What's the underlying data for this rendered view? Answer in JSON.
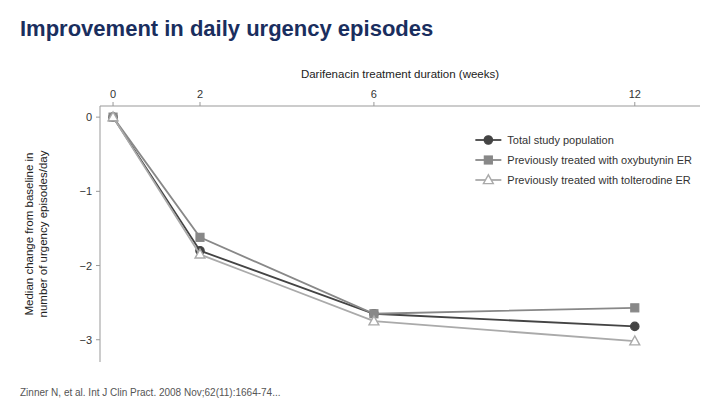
{
  "chart_data": {
    "type": "line",
    "title": "Improvement in daily urgency episodes",
    "citation": "Zinner N, et al. Int J Clin Pract. 2008 Nov;62(11):1664-74...",
    "x_label": "Darifenacin treatment duration (weeks)",
    "y_label": "Median change from baseline in\nnumber of urgency episodes/day",
    "x": [
      0,
      2,
      6,
      12
    ],
    "xlim": [
      -0.3,
      13.5
    ],
    "xticks": [
      0,
      2,
      6,
      12
    ],
    "ylim": [
      -3.3,
      0.15
    ],
    "yticks": [
      0,
      {
        "value": -1,
        "label": "−1"
      },
      {
        "value": -2,
        "label": "−2"
      },
      {
        "value": -3,
        "label": "−3"
      }
    ],
    "grid": false,
    "legend": "upper right",
    "series": [
      {
        "name": "Total study population",
        "color": "#444444",
        "marker": "circle",
        "line_style": "solid",
        "values": [
          0,
          -1.8,
          -2.65,
          -2.82
        ]
      },
      {
        "name": "Previously treated with oxybutynin ER",
        "color": "#888888",
        "marker": "square",
        "line_style": "solid",
        "values": [
          0,
          -1.62,
          -2.65,
          -2.57
        ]
      },
      {
        "name": "Previously treated with tolterodine ER",
        "color": "#aaaaaa",
        "marker": "triangle-open",
        "line_style": "solid",
        "values": [
          0,
          -1.85,
          -2.75,
          -3.02
        ]
      }
    ]
  }
}
